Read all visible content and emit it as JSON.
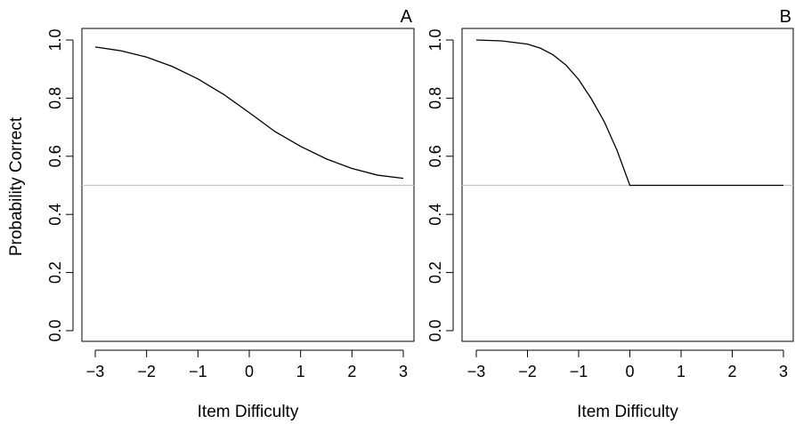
{
  "figure": {
    "ylabel": "Probability Correct"
  },
  "chart_data": [
    {
      "type": "line",
      "panel_label": "A",
      "xlabel": "Item Difficulty",
      "xlim": [
        -3,
        3
      ],
      "ylim": [
        0,
        1
      ],
      "x_ticks": [
        -3,
        -2,
        -1,
        0,
        1,
        2,
        3
      ],
      "x_tick_labels": [
        "−3",
        "−2",
        "−1",
        "0",
        "1",
        "2",
        "3"
      ],
      "y_ticks": [
        0,
        0.2,
        0.4,
        0.6,
        0.8,
        1
      ],
      "y_tick_labels": [
        "0.0",
        "0.2",
        "0.4",
        "0.6",
        "0.8",
        "1.0"
      ],
      "reference_line": {
        "y": 0.5,
        "color": "#c8c8c8"
      },
      "series": [
        {
          "color": "#000000",
          "x": [
            -3,
            -2.5,
            -2,
            -1.5,
            -1,
            -0.5,
            0,
            0.5,
            1,
            1.5,
            2,
            2.5,
            3
          ],
          "y": [
            0.976,
            0.963,
            0.941,
            0.909,
            0.866,
            0.813,
            0.75,
            0.685,
            0.634,
            0.591,
            0.558,
            0.535,
            0.524
          ]
        }
      ],
      "grid": false,
      "legend": "none"
    },
    {
      "type": "line",
      "panel_label": "B",
      "xlabel": "Item Difficulty",
      "xlim": [
        -3,
        3
      ],
      "ylim": [
        0,
        1
      ],
      "x_ticks": [
        -3,
        -2,
        -1,
        0,
        1,
        2,
        3
      ],
      "x_tick_labels": [
        "−3",
        "−2",
        "−1",
        "0",
        "1",
        "2",
        "3"
      ],
      "y_ticks": [
        0,
        0.2,
        0.4,
        0.6,
        0.8,
        1
      ],
      "y_tick_labels": [
        "0.0",
        "0.2",
        "0.4",
        "0.6",
        "0.8",
        "1.0"
      ],
      "reference_line": {
        "y": 0.5,
        "color": "#c8c8c8"
      },
      "series": [
        {
          "color": "#000000",
          "x": [
            -3,
            -2.5,
            -2,
            -1.75,
            -1.5,
            -1.25,
            -1,
            -0.75,
            -0.5,
            -0.25,
            0,
            1,
            2,
            3
          ],
          "y": [
            1.0,
            0.997,
            0.986,
            0.972,
            0.949,
            0.914,
            0.864,
            0.797,
            0.719,
            0.62,
            0.5,
            0.5,
            0.5,
            0.5
          ]
        }
      ],
      "grid": false,
      "legend": "none"
    }
  ]
}
